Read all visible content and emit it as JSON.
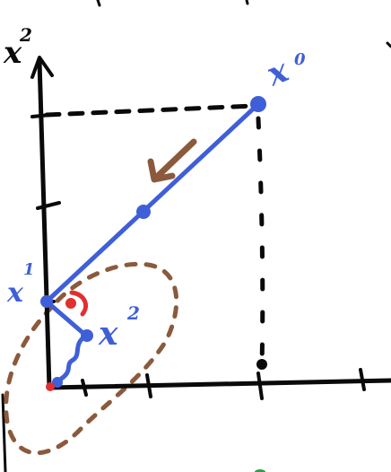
{
  "diagram": {
    "axis_label": "x",
    "axis_label_sup": "2",
    "point_labels": {
      "start": {
        "base": "x",
        "sup": "0"
      },
      "x1": {
        "base": "x",
        "sup": "1"
      },
      "x2": {
        "base": "x",
        "sup": "2"
      }
    },
    "colors": {
      "axes": "#0a0a0a",
      "path": "#3f5fd8",
      "contour": "#8b5a3c",
      "angle_marker": "#e03030",
      "arrow": "#8b5a3c",
      "accent_green": "#2e9e4a"
    }
  }
}
